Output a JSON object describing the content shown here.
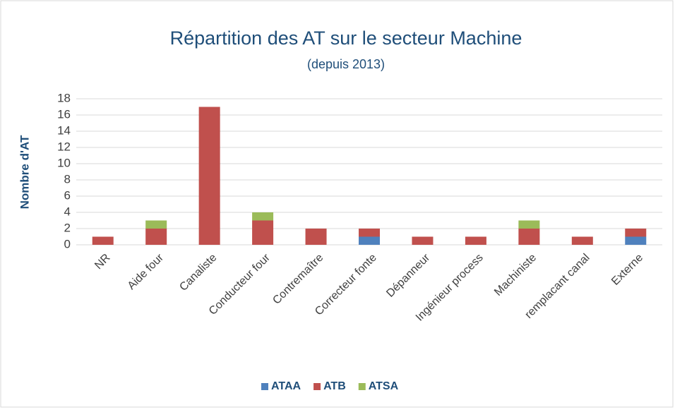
{
  "chart_data": {
    "type": "stacked_bar",
    "title": "Répartition des AT sur le secteur Machine",
    "subtitle": "(depuis 2013)",
    "y_label": "Nombre d'AT",
    "categories": [
      "NR",
      "Aide four",
      "Canaliste",
      "Conducteur four",
      "Contremaître",
      "Correcteur fonte",
      "Dépanneur",
      "Ingénieur process",
      "Machiniste",
      "remplacant canal",
      "Externe"
    ],
    "series": [
      {
        "name": "ATAA",
        "color": "#4f81bd",
        "values": [
          0,
          0,
          0,
          0,
          0,
          1,
          0,
          0,
          0,
          0,
          1
        ]
      },
      {
        "name": "ATB",
        "color": "#c0504d",
        "values": [
          1,
          2,
          17,
          3,
          2,
          1,
          1,
          1,
          2,
          1,
          1
        ]
      },
      {
        "name": "ATSA",
        "color": "#9bbb59",
        "values": [
          0,
          1,
          0,
          1,
          0,
          0,
          0,
          0,
          1,
          0,
          0
        ]
      }
    ],
    "ylim": [
      0,
      18
    ],
    "yticks": [
      0,
      2,
      4,
      6,
      8,
      10,
      12,
      14,
      16,
      18
    ],
    "grid": true,
    "legend": "bottom"
  }
}
